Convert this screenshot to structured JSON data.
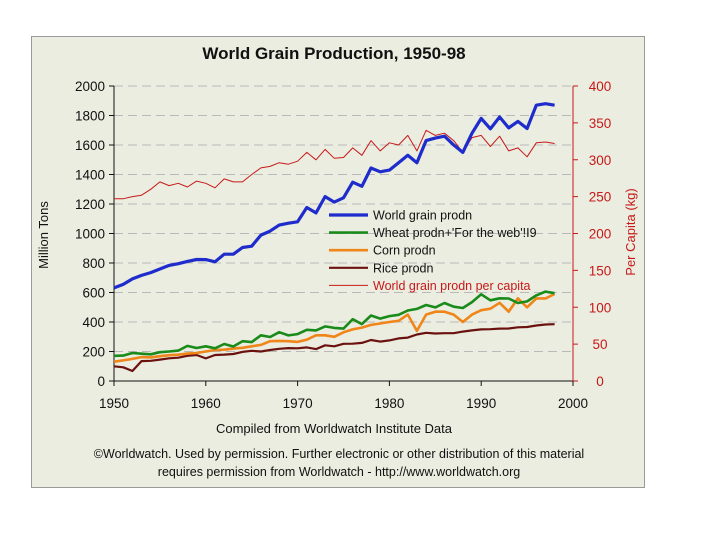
{
  "chart_data": {
    "type": "line",
    "title": "World Grain Production, 1950-98",
    "xlabel": "Compiled from Worldwatch Institute Data",
    "ylabel": "Million Tons",
    "y2label": "Per Capita (kg)",
    "xlim": [
      1950,
      2000
    ],
    "ylim": [
      0,
      2000
    ],
    "y2lim": [
      0,
      400
    ],
    "x_ticks": [
      "1950",
      "1960",
      "1970",
      "1980",
      "1990",
      "2000"
    ],
    "y_ticks": [
      "0",
      "200",
      "400",
      "600",
      "800",
      "1000",
      "1200",
      "1400",
      "1600",
      "1800",
      "2000"
    ],
    "y2_ticks": [
      "0",
      "50",
      "100",
      "150",
      "200",
      "250",
      "300",
      "350",
      "400"
    ],
    "grid": "horizontal dashed",
    "legend_position": "center-right",
    "x": [
      1950,
      1951,
      1952,
      1953,
      1954,
      1955,
      1956,
      1957,
      1958,
      1959,
      1960,
      1961,
      1962,
      1963,
      1964,
      1965,
      1966,
      1967,
      1968,
      1969,
      1970,
      1971,
      1972,
      1973,
      1974,
      1975,
      1976,
      1977,
      1978,
      1979,
      1980,
      1981,
      1982,
      1983,
      1984,
      1985,
      1986,
      1987,
      1988,
      1989,
      1990,
      1991,
      1992,
      1993,
      1994,
      1995,
      1996,
      1997,
      1998
    ],
    "series": [
      {
        "name": "World grain prodn",
        "axis": "left",
        "color": "#1f2ccc",
        "width": 3.2,
        "values": [
          631,
          655,
          692,
          716,
          735,
          759,
          784,
          795,
          811,
          824,
          823,
          808,
          860,
          860,
          905,
          914,
          989,
          1016,
          1057,
          1070,
          1079,
          1176,
          1140,
          1250,
          1213,
          1242,
          1348,
          1320,
          1444,
          1418,
          1430,
          1480,
          1530,
          1480,
          1630,
          1647,
          1660,
          1600,
          1550,
          1680,
          1780,
          1710,
          1790,
          1716,
          1760,
          1712,
          1870,
          1880,
          1870
        ]
      },
      {
        "name": "Wheat prodn+'For the web'!I9",
        "axis": "left",
        "color": "#1a8a1a",
        "width": 2.6,
        "values": [
          171,
          172,
          190,
          185,
          181,
          195,
          200,
          206,
          238,
          224,
          235,
          222,
          251,
          234,
          270,
          264,
          310,
          298,
          331,
          309,
          318,
          347,
          343,
          370,
          360,
          355,
          419,
          386,
          444,
          423,
          440,
          449,
          478,
          489,
          515,
          499,
          529,
          504,
          495,
          535,
          588,
          547,
          561,
          559,
          529,
          540,
          580,
          606,
          595
        ]
      },
      {
        "name": "Corn prodn",
        "axis": "left",
        "color": "#f08519",
        "width": 2.6,
        "values": [
          131,
          140,
          150,
          162,
          160,
          168,
          175,
          178,
          186,
          190,
          200,
          210,
          212,
          220,
          225,
          235,
          245,
          270,
          272,
          270,
          265,
          280,
          310,
          310,
          300,
          330,
          350,
          362,
          380,
          390,
          400,
          408,
          450,
          340,
          450,
          470,
          470,
          450,
          400,
          450,
          480,
          490,
          530,
          470,
          560,
          500,
          560,
          560,
          590
        ]
      },
      {
        "name": "Rice prodn",
        "axis": "left",
        "color": "#6b1210",
        "width": 2.2,
        "values": [
          100,
          93,
          68,
          135,
          137,
          145,
          154,
          158,
          171,
          176,
          153,
          176,
          179,
          183,
          197,
          205,
          200,
          210,
          218,
          223,
          222,
          228,
          216,
          242,
          235,
          252,
          253,
          258,
          278,
          267,
          275,
          289,
          294,
          315,
          327,
          322,
          324,
          324,
          335,
          343,
          350,
          351,
          355,
          356,
          364,
          366,
          376,
          383,
          385
        ]
      },
      {
        "name": "World grain prodn per capita",
        "axis": "right",
        "color": "#c8191a",
        "width": 1.0,
        "values": [
          247,
          247,
          250,
          252,
          260,
          270,
          265,
          268,
          263,
          271,
          268,
          262,
          274,
          270,
          270,
          280,
          289,
          291,
          296,
          294,
          298,
          310,
          300,
          314,
          302,
          303,
          316,
          306,
          326,
          312,
          323,
          320,
          333,
          312,
          340,
          333,
          336,
          326,
          310,
          330,
          333,
          318,
          332,
          312,
          316,
          304,
          323,
          324,
          322
        ]
      }
    ]
  },
  "credit": {
    "line1": "©Worldwatch. Used by permission. Further electronic or other distribution of this material",
    "line2": "requires permission from Worldwatch - http://www.worldwatch.org"
  }
}
